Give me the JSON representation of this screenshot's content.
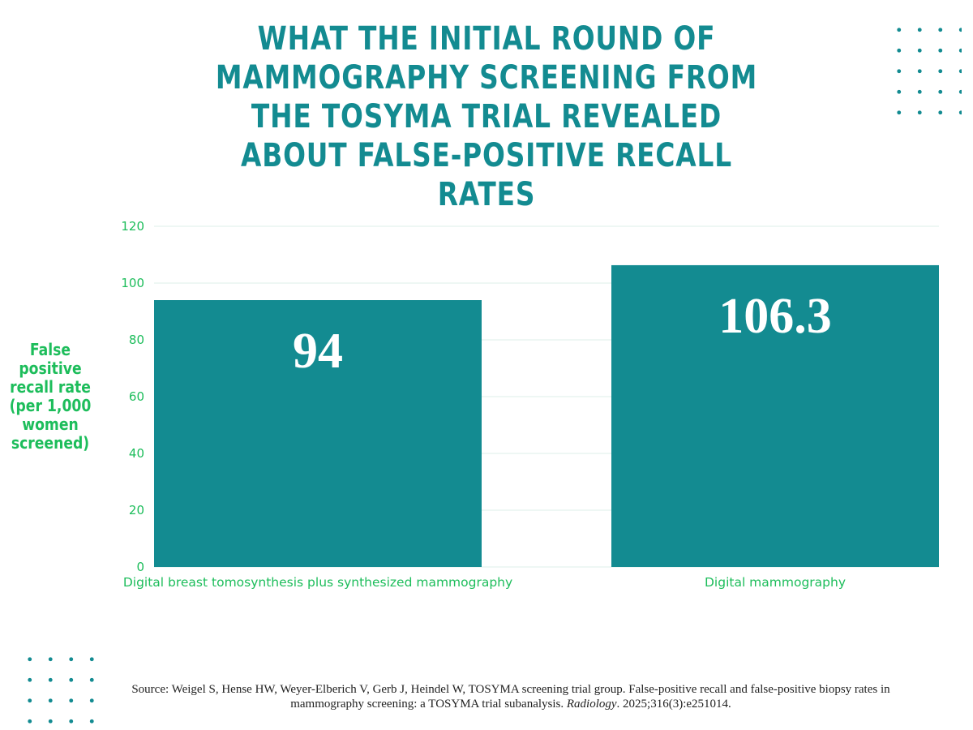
{
  "chart_data": {
    "type": "bar",
    "title": "WHAT THE INITIAL ROUND OF MAMMOGRAPHY SCREENING FROM THE TOSYMA TRIAL REVEALED ABOUT FALSE-POSITIVE RECALL RATES",
    "ylabel": "False positive recall rate (per 1,000 women screened)",
    "xlabel": "",
    "categories": [
      "Digital breast tomosynthesis plus synthesized mammography",
      "Digital mammography"
    ],
    "values": [
      94,
      106.3
    ],
    "value_labels": [
      "94",
      "106.3"
    ],
    "ylim": [
      0,
      120
    ],
    "yticks": [
      0,
      20,
      40,
      60,
      80,
      100,
      120
    ],
    "grid": true,
    "bar_color": "#138b91",
    "text_color": "#1dbd5b",
    "title_color": "#138b91"
  },
  "source": {
    "prefix": "Source: Weigel S, Hense HW, Weyer-Elberich V, Gerb J, Heindel W, TOSYMA screening trial group. False-positive recall and false-positive biopsy rates in mammography screening: a TOSYMA trial subanalysis. ",
    "journal": "Radiology",
    "suffix": ". 2025;316(3):e251014."
  }
}
